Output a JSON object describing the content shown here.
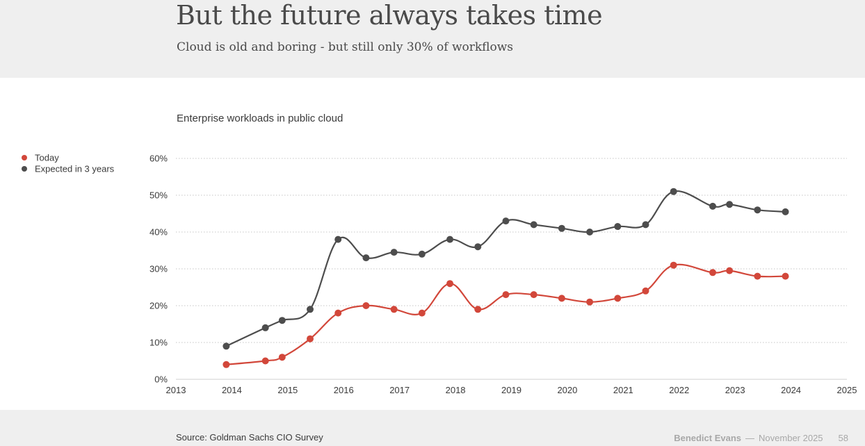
{
  "header": {
    "title": "But the future always takes time",
    "subtitle": "Cloud is old and boring - but still only 30% of workflows"
  },
  "footer": {
    "source": "Source: Goldman Sachs CIO Survey",
    "author": "Benedict Evans",
    "separator": "—",
    "date": "November 2025",
    "page": "58"
  },
  "chart_data": {
    "type": "line",
    "title": "Enterprise workloads in public cloud",
    "xlabel": "",
    "ylabel": "",
    "xlim": [
      2013,
      2025
    ],
    "ylim": [
      0,
      60
    ],
    "x_ticks": [
      "2013",
      "2014",
      "2015",
      "2016",
      "2017",
      "2018",
      "2019",
      "2020",
      "2021",
      "2022",
      "2023",
      "2024",
      "2025"
    ],
    "y_ticks": [
      "0%",
      "10%",
      "20%",
      "30%",
      "40%",
      "50%",
      "60%"
    ],
    "grid": "horizontal dotted",
    "legend_position": "top-left",
    "series": [
      {
        "name": "Today",
        "color": "#d2473a",
        "x": [
          2013.9,
          2014.6,
          2014.9,
          2015.4,
          2015.9,
          2016.4,
          2016.9,
          2017.4,
          2017.9,
          2018.4,
          2018.9,
          2019.4,
          2019.9,
          2020.4,
          2020.9,
          2021.4,
          2021.9,
          2022.6,
          2022.9,
          2023.4,
          2023.9
        ],
        "values": [
          4,
          5,
          6,
          11,
          18,
          20,
          19,
          18,
          26,
          19,
          23,
          23,
          22,
          21,
          22,
          24,
          31,
          29,
          29.5,
          28,
          28
        ]
      },
      {
        "name": "Expected in 3 years",
        "color": "#4d4d4d",
        "x": [
          2013.9,
          2014.6,
          2014.9,
          2015.4,
          2015.9,
          2016.4,
          2016.9,
          2017.4,
          2017.9,
          2018.4,
          2018.9,
          2019.4,
          2019.9,
          2020.4,
          2020.9,
          2021.4,
          2021.9,
          2022.6,
          2022.9,
          2023.4,
          2023.9
        ],
        "values": [
          9,
          14,
          16,
          19,
          38,
          33,
          34.5,
          34,
          38,
          36,
          43,
          42,
          41,
          40,
          41.5,
          42,
          51,
          47,
          47.5,
          46,
          45.5
        ]
      }
    ]
  }
}
